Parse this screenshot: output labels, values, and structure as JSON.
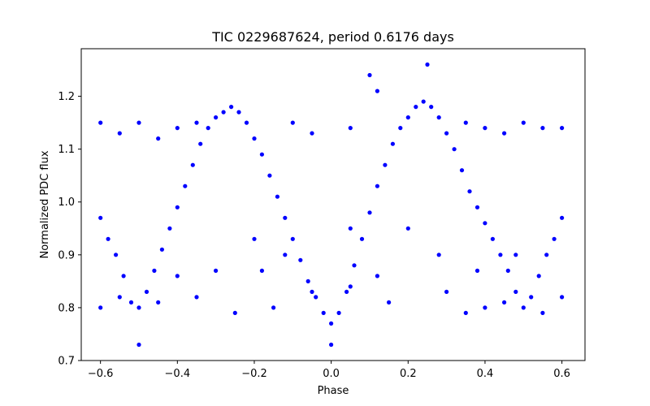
{
  "chart_data": {
    "type": "scatter",
    "title": "TIC 0229687624, period 0.6176 days",
    "xlabel": "Phase",
    "ylabel": "Normalized PDC flux",
    "xlim": [
      -0.65,
      0.66
    ],
    "ylim": [
      0.7,
      1.29
    ],
    "xticks": [
      -0.6,
      -0.4,
      -0.2,
      0.0,
      0.2,
      0.4,
      0.6
    ],
    "xtick_labels": [
      "−0.6",
      "−0.4",
      "−0.2",
      "0.0",
      "0.2",
      "0.4",
      "0.6"
    ],
    "yticks": [
      0.7,
      0.8,
      0.9,
      1.0,
      1.1,
      1.2
    ],
    "ytick_labels": [
      "0.7",
      "0.8",
      "0.9",
      "1.0",
      "1.1",
      "1.2"
    ],
    "grid": false,
    "legend": "none",
    "marker_color": "#0000ff",
    "series": [
      {
        "values": [
          [
            -0.6,
            0.97
          ],
          [
            -0.58,
            0.93
          ],
          [
            -0.56,
            0.9
          ],
          [
            -0.54,
            0.86
          ],
          [
            -0.52,
            0.81
          ],
          [
            -0.5,
            0.8
          ],
          [
            -0.48,
            0.83
          ],
          [
            -0.46,
            0.87
          ],
          [
            -0.44,
            0.91
          ],
          [
            -0.42,
            0.95
          ],
          [
            -0.4,
            0.99
          ],
          [
            -0.38,
            1.03
          ],
          [
            -0.36,
            1.07
          ],
          [
            -0.34,
            1.11
          ],
          [
            -0.32,
            1.14
          ],
          [
            -0.3,
            1.16
          ],
          [
            -0.28,
            1.17
          ],
          [
            -0.26,
            1.18
          ],
          [
            -0.24,
            1.17
          ],
          [
            -0.22,
            1.15
          ],
          [
            -0.2,
            1.12
          ],
          [
            -0.18,
            1.09
          ],
          [
            -0.16,
            1.05
          ],
          [
            -0.14,
            1.01
          ],
          [
            -0.12,
            0.97
          ],
          [
            -0.1,
            0.93
          ],
          [
            -0.08,
            0.89
          ],
          [
            -0.06,
            0.85
          ],
          [
            -0.04,
            0.82
          ],
          [
            -0.02,
            0.79
          ],
          [
            0.0,
            0.77
          ],
          [
            0.02,
            0.79
          ],
          [
            0.04,
            0.83
          ],
          [
            0.06,
            0.88
          ],
          [
            0.08,
            0.93
          ],
          [
            0.1,
            0.98
          ],
          [
            0.12,
            1.03
          ],
          [
            0.14,
            1.07
          ],
          [
            0.16,
            1.11
          ],
          [
            0.18,
            1.14
          ],
          [
            0.2,
            1.16
          ],
          [
            0.22,
            1.18
          ],
          [
            0.24,
            1.19
          ],
          [
            0.26,
            1.18
          ],
          [
            0.28,
            1.16
          ],
          [
            0.3,
            1.13
          ],
          [
            0.32,
            1.1
          ],
          [
            0.34,
            1.06
          ],
          [
            0.36,
            1.02
          ],
          [
            0.38,
            0.99
          ],
          [
            0.4,
            0.96
          ],
          [
            0.42,
            0.93
          ],
          [
            0.44,
            0.9
          ],
          [
            0.46,
            0.87
          ],
          [
            0.48,
            0.83
          ],
          [
            0.5,
            0.8
          ],
          [
            0.52,
            0.82
          ],
          [
            0.54,
            0.86
          ],
          [
            0.56,
            0.9
          ],
          [
            0.58,
            0.93
          ],
          [
            0.6,
            0.97
          ],
          [
            -0.6,
            1.15
          ],
          [
            -0.55,
            1.13
          ],
          [
            -0.5,
            1.15
          ],
          [
            -0.45,
            1.12
          ],
          [
            -0.4,
            1.14
          ],
          [
            -0.35,
            1.15
          ],
          [
            -0.1,
            1.15
          ],
          [
            -0.05,
            1.13
          ],
          [
            0.05,
            1.14
          ],
          [
            0.1,
            1.24
          ],
          [
            0.12,
            1.21
          ],
          [
            0.25,
            1.26
          ],
          [
            0.35,
            1.15
          ],
          [
            0.4,
            1.14
          ],
          [
            0.45,
            1.13
          ],
          [
            0.5,
            1.15
          ],
          [
            0.55,
            1.14
          ],
          [
            0.6,
            1.14
          ],
          [
            -0.6,
            0.8
          ],
          [
            -0.55,
            0.82
          ],
          [
            -0.45,
            0.81
          ],
          [
            -0.35,
            0.82
          ],
          [
            -0.25,
            0.79
          ],
          [
            -0.15,
            0.8
          ],
          [
            -0.05,
            0.83
          ],
          [
            0.0,
            0.73
          ],
          [
            0.05,
            0.84
          ],
          [
            0.15,
            0.81
          ],
          [
            0.3,
            0.83
          ],
          [
            0.35,
            0.79
          ],
          [
            0.4,
            0.8
          ],
          [
            0.45,
            0.81
          ],
          [
            0.55,
            0.79
          ],
          [
            0.6,
            0.82
          ],
          [
            -0.5,
            0.73
          ],
          [
            -0.3,
            0.87
          ],
          [
            -0.2,
            0.93
          ],
          [
            -0.18,
            0.87
          ],
          [
            0.05,
            0.95
          ],
          [
            0.12,
            0.86
          ],
          [
            0.2,
            0.95
          ],
          [
            0.28,
            0.9
          ],
          [
            0.38,
            0.87
          ],
          [
            0.48,
            0.9
          ],
          [
            -0.4,
            0.86
          ],
          [
            -0.12,
            0.9
          ]
        ]
      }
    ]
  }
}
